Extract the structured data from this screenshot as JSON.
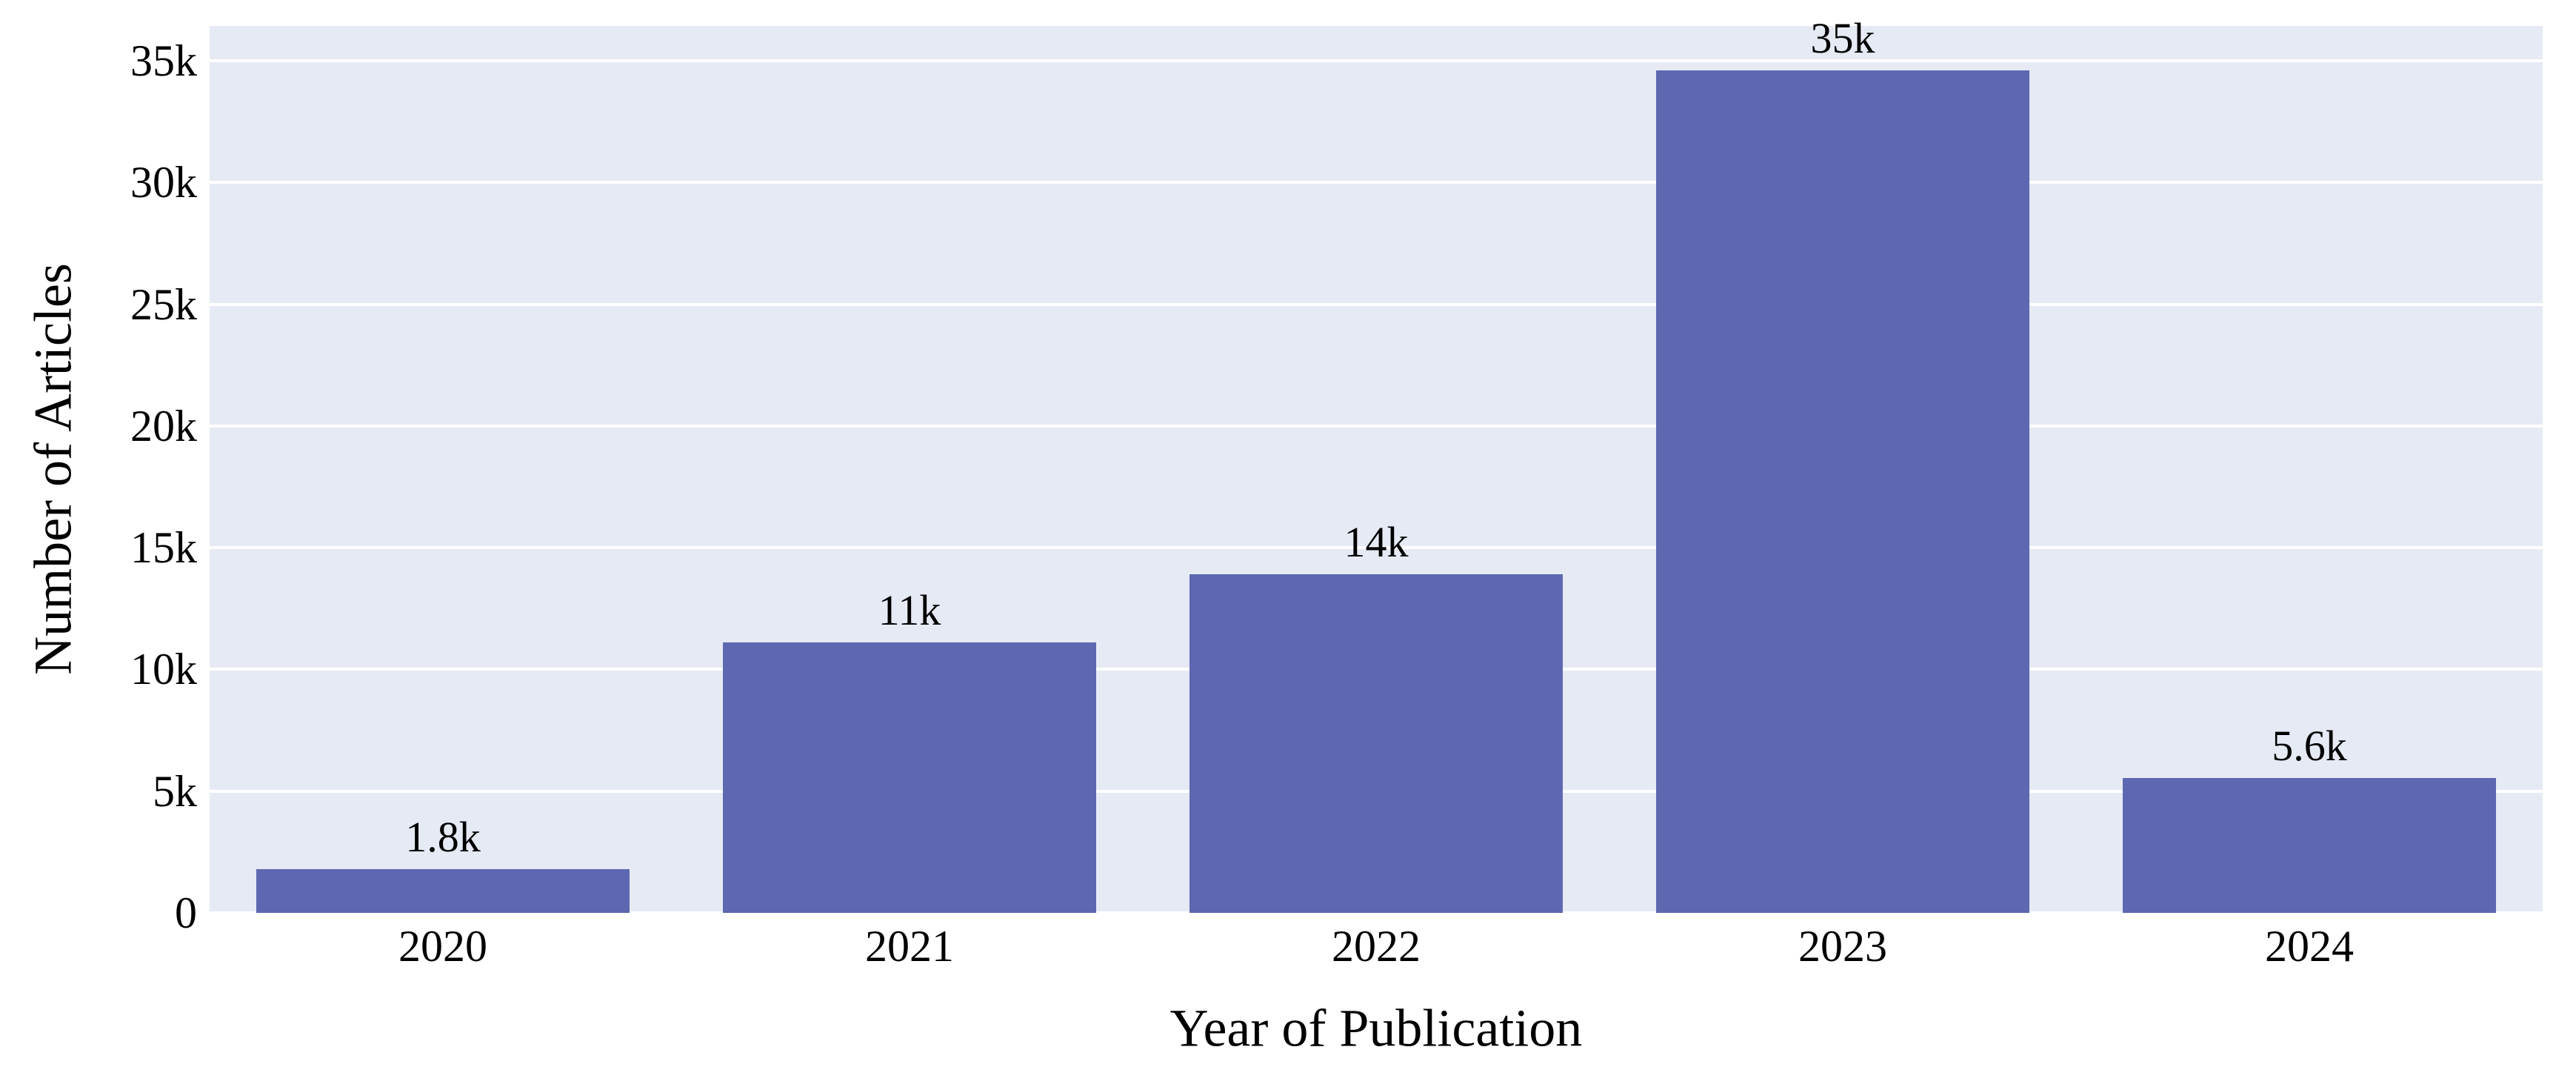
{
  "chart_data": {
    "type": "bar",
    "title": "",
    "xlabel": "Year of Publication",
    "ylabel": "Number of Articles",
    "categories": [
      "2020",
      "2021",
      "2022",
      "2023",
      "2024"
    ],
    "values": [
      1800,
      11100,
      13900,
      34600,
      5550
    ],
    "bar_labels": [
      "1.8k",
      "11k",
      "14k",
      "35k",
      "5.6k"
    ],
    "ylim": [
      0,
      36430
    ],
    "yticks": [
      0,
      5000,
      10000,
      15000,
      20000,
      25000,
      30000,
      35000
    ],
    "ytick_labels": [
      "0",
      "5k",
      "10k",
      "15k",
      "20k",
      "25k",
      "30k",
      "35k"
    ],
    "grid": "horizontal",
    "legend_position": "none",
    "colors": {
      "bar": "#5e68b0",
      "plot_background": "#e5eaf5",
      "figure_background": "#ffffff",
      "gridline": "#ffffff",
      "text": "#000000"
    }
  }
}
